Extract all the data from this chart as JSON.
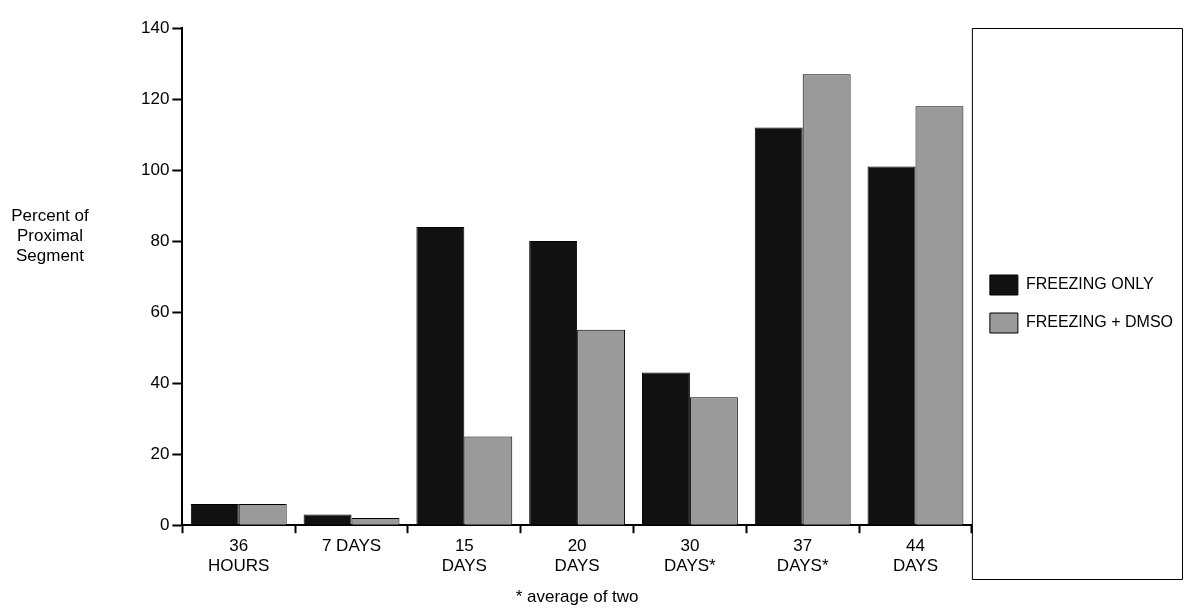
{
  "chart_data": {
    "type": "bar",
    "ylabel": "Percent of\nProximal\nSegment",
    "categories": [
      "36\nHOURS",
      "7 DAYS",
      "15\nDAYS",
      "20\nDAYS",
      "30\nDAYS*",
      "37\nDAYS*",
      "44\nDAYS"
    ],
    "series": [
      {
        "name": "FREEZING ONLY",
        "color": "#111111",
        "values": [
          6,
          3,
          84,
          80,
          43,
          112,
          101
        ]
      },
      {
        "name": "FREEZING + DMSO",
        "color": "#9a9a9a",
        "values": [
          6,
          2,
          25,
          55,
          36,
          127,
          118
        ]
      }
    ],
    "ylim": [
      0,
      140
    ],
    "yticks": [
      0,
      20,
      40,
      60,
      80,
      100,
      120,
      140
    ],
    "grid": false,
    "legend": "right",
    "annotations": [
      "* average of two"
    ]
  }
}
